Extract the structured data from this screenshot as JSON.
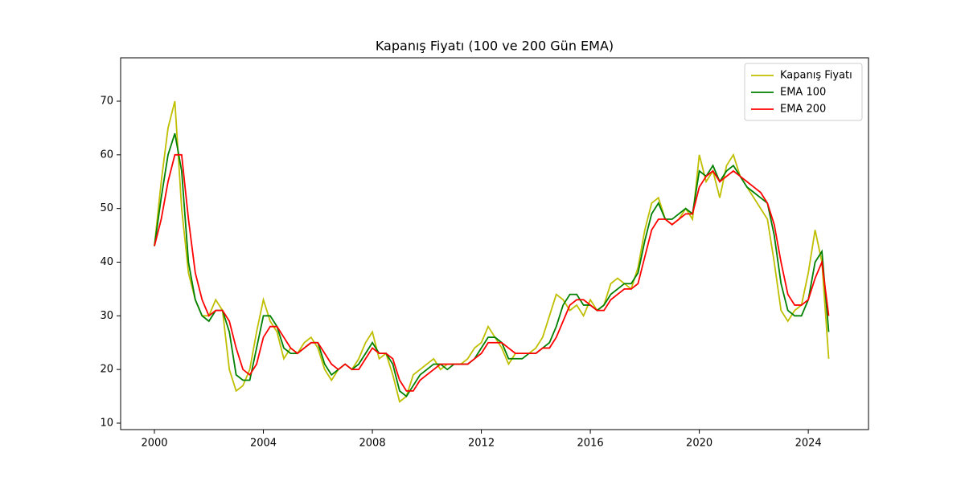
{
  "chart_data": {
    "type": "line",
    "title": "Kapanış Fiyatı (100 ve 200 Gün EMA)",
    "x": [
      2000,
      2000.25,
      2000.5,
      2000.75,
      2001,
      2001.25,
      2001.5,
      2001.75,
      2002,
      2002.25,
      2002.5,
      2002.75,
      2003,
      2003.25,
      2003.5,
      2003.75,
      2004,
      2004.25,
      2004.5,
      2004.75,
      2005,
      2005.25,
      2005.5,
      2005.75,
      2006,
      2006.25,
      2006.5,
      2006.75,
      2007,
      2007.25,
      2007.5,
      2007.75,
      2008,
      2008.25,
      2008.5,
      2008.75,
      2009,
      2009.25,
      2009.5,
      2009.75,
      2010,
      2010.25,
      2010.5,
      2010.75,
      2011,
      2011.25,
      2011.5,
      2011.75,
      2012,
      2012.25,
      2012.5,
      2012.75,
      2013,
      2013.25,
      2013.5,
      2013.75,
      2014,
      2014.25,
      2014.5,
      2014.75,
      2015,
      2015.25,
      2015.5,
      2015.75,
      2016,
      2016.25,
      2016.5,
      2016.75,
      2017,
      2017.25,
      2017.5,
      2017.75,
      2018,
      2018.25,
      2018.5,
      2018.75,
      2019,
      2019.25,
      2019.5,
      2019.75,
      2020,
      2020.25,
      2020.5,
      2020.75,
      2021,
      2021.25,
      2021.5,
      2021.75,
      2022,
      2022.25,
      2022.5,
      2022.75,
      2023,
      2023.25,
      2023.5,
      2023.75,
      2024,
      2024.25,
      2024.5,
      2024.75
    ],
    "series": [
      {
        "name": "Kapanış Fiyatı",
        "color": "#bfbf00",
        "values": [
          43,
          55,
          65,
          70,
          50,
          38,
          33,
          30,
          30,
          33,
          31,
          20,
          16,
          17,
          20,
          27,
          33,
          29,
          27,
          22,
          24,
          23,
          25,
          26,
          24,
          20,
          18,
          20,
          21,
          20,
          22,
          25,
          27,
          22,
          23,
          19,
          14,
          15,
          19,
          20,
          21,
          22,
          20,
          21,
          21,
          21,
          22,
          24,
          25,
          28,
          26,
          24,
          21,
          23,
          23,
          23,
          24,
          26,
          30,
          34,
          33,
          31,
          32,
          30,
          33,
          31,
          32,
          36,
          37,
          36,
          35,
          39,
          46,
          51,
          52,
          48,
          47,
          48,
          50,
          48,
          60,
          55,
          57,
          52,
          58,
          60,
          56,
          54,
          52,
          50,
          48,
          40,
          31,
          29,
          31,
          32,
          38,
          46,
          40,
          22
        ]
      },
      {
        "name": "EMA 100",
        "color": "#008000",
        "values": [
          43,
          52,
          60,
          64,
          57,
          40,
          33,
          30,
          29,
          31,
          31,
          27,
          19,
          18,
          18,
          24,
          30,
          30,
          28,
          24,
          23,
          23,
          24,
          25,
          25,
          21,
          19,
          20,
          21,
          20,
          21,
          23,
          25,
          23,
          23,
          21,
          16,
          15,
          17,
          19,
          20,
          21,
          21,
          20,
          21,
          21,
          21,
          22,
          24,
          26,
          26,
          25,
          22,
          22,
          22,
          23,
          23,
          24,
          25,
          28,
          32,
          34,
          34,
          32,
          32,
          31,
          32,
          34,
          35,
          36,
          36,
          38,
          44,
          49,
          51,
          48,
          48,
          49,
          50,
          49,
          57,
          56,
          58,
          55,
          57,
          58,
          56,
          54,
          53,
          52,
          51,
          45,
          36,
          31,
          30,
          30,
          33,
          40,
          42,
          27
        ]
      },
      {
        "name": "EMA 200",
        "color": "#ff0000",
        "values": [
          43,
          48,
          55,
          60,
          60,
          48,
          38,
          33,
          30,
          31,
          31,
          29,
          24,
          20,
          19,
          21,
          26,
          28,
          28,
          26,
          24,
          23,
          24,
          25,
          25,
          23,
          21,
          20,
          21,
          20,
          20,
          22,
          24,
          23,
          23,
          22,
          18,
          16,
          16,
          18,
          19,
          20,
          21,
          21,
          21,
          21,
          21,
          22,
          23,
          25,
          25,
          25,
          24,
          23,
          23,
          23,
          23,
          24,
          24,
          26,
          29,
          32,
          33,
          33,
          32,
          31,
          31,
          33,
          34,
          35,
          35,
          36,
          41,
          46,
          48,
          48,
          47,
          48,
          49,
          49,
          54,
          56,
          57,
          55,
          56,
          57,
          56,
          55,
          54,
          53,
          51,
          47,
          40,
          34,
          32,
          32,
          33,
          37,
          40,
          30
        ]
      }
    ],
    "xlim": [
      1998.76,
      2026.21
    ],
    "xticks": [
      2000,
      2004,
      2008,
      2012,
      2016,
      2020,
      2024
    ],
    "ylim": [
      8.8,
      78.08
    ],
    "yticks": [
      10,
      20,
      30,
      40,
      50,
      60,
      70
    ],
    "legend": "upper right"
  }
}
